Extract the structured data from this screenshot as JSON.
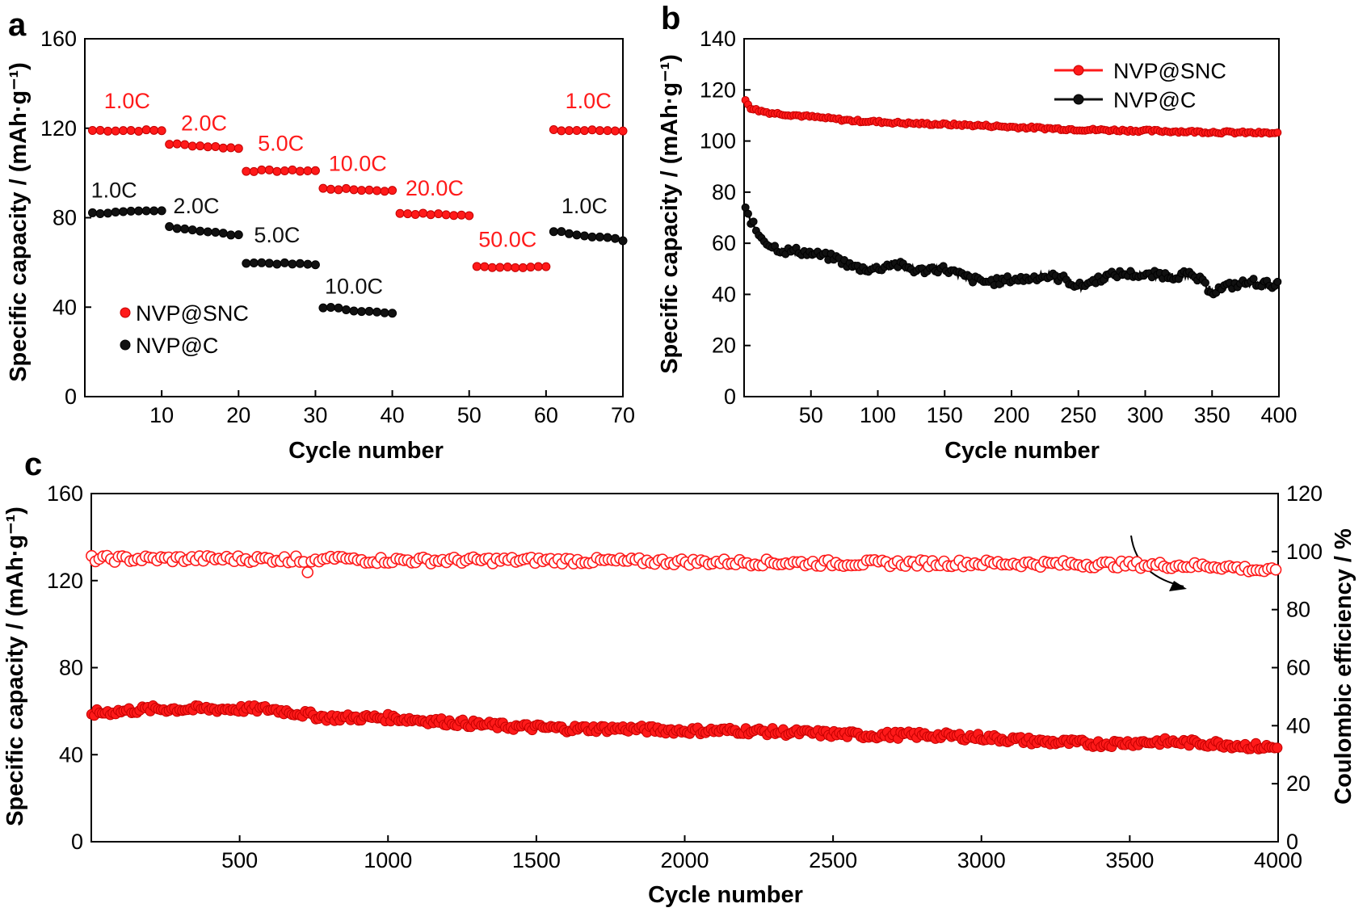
{
  "colors": {
    "snc": "#ff1a1a",
    "c": "#111111",
    "snc_edge": "#c40000",
    "axis": "#000000"
  },
  "chart_data": [
    {
      "panel": "a",
      "type": "scatter",
      "xlabel": "Cycle number",
      "ylabel": "Specific capacity / (mAh·g⁻¹)",
      "xlim": [
        0,
        70
      ],
      "ylim": [
        0,
        160
      ],
      "xticks": [
        "10",
        "20",
        "30",
        "40",
        "50",
        "60",
        "70"
      ],
      "yticks": [
        "0",
        "40",
        "80",
        "120",
        "160"
      ],
      "legend_position": "bottom-left",
      "series": [
        {
          "name": "NVP@SNC",
          "color": "snc",
          "segments": [
            {
              "rate": "1.0C",
              "x_start": 1,
              "x_end": 10,
              "y_start": 119,
              "y_end": 119
            },
            {
              "rate": "2.0C",
              "x_start": 11,
              "x_end": 20,
              "y_start": 113,
              "y_end": 111
            },
            {
              "rate": "5.0C",
              "x_start": 21,
              "x_end": 30,
              "y_start": 101,
              "y_end": 101
            },
            {
              "rate": "10.0C",
              "x_start": 31,
              "x_end": 40,
              "y_start": 93,
              "y_end": 92
            },
            {
              "rate": "20.0C",
              "x_start": 41,
              "x_end": 50,
              "y_start": 82,
              "y_end": 81
            },
            {
              "rate": "50.0C",
              "x_start": 51,
              "x_end": 60,
              "y_start": 58,
              "y_end": 58
            },
            {
              "rate": "1.0C",
              "x_start": 61,
              "x_end": 70,
              "y_start": 119,
              "y_end": 119
            }
          ]
        },
        {
          "name": "NVP@C",
          "color": "c",
          "segments": [
            {
              "rate": "1.0C",
              "x_start": 1,
              "x_end": 10,
              "y_start": 82,
              "y_end": 83
            },
            {
              "rate": "2.0C",
              "x_start": 11,
              "x_end": 20,
              "y_start": 76,
              "y_end": 72
            },
            {
              "rate": "5.0C",
              "x_start": 21,
              "x_end": 30,
              "y_start": 60,
              "y_end": 59
            },
            {
              "rate": "10.0C",
              "x_start": 31,
              "x_end": 40,
              "y_start": 40,
              "y_end": 37
            },
            {
              "rate": "1.0C",
              "x_start": 61,
              "x_end": 70,
              "y_start": 74,
              "y_end": 70
            }
          ]
        }
      ],
      "annotations": [
        {
          "text": "1.0C",
          "series": "NVP@SNC",
          "x": 5.5,
          "y": 129
        },
        {
          "text": "2.0C",
          "series": "NVP@SNC",
          "x": 15.5,
          "y": 119
        },
        {
          "text": "5.0C",
          "series": "NVP@SNC",
          "x": 25.5,
          "y": 110
        },
        {
          "text": "10.0C",
          "series": "NVP@SNC",
          "x": 35.5,
          "y": 101
        },
        {
          "text": "20.0C",
          "series": "NVP@SNC",
          "x": 45.5,
          "y": 90
        },
        {
          "text": "50.0C",
          "series": "NVP@SNC",
          "x": 55,
          "y": 67
        },
        {
          "text": "1.0C",
          "series": "NVP@SNC",
          "x": 65.5,
          "y": 129
        },
        {
          "text": "1.0C",
          "series": "NVP@C",
          "x": 3.8,
          "y": 89
        },
        {
          "text": "2.0C",
          "series": "NVP@C",
          "x": 14.5,
          "y": 82
        },
        {
          "text": "5.0C",
          "series": "NVP@C",
          "x": 25,
          "y": 69
        },
        {
          "text": "10.0C",
          "series": "NVP@C",
          "x": 35,
          "y": 46
        },
        {
          "text": "1.0C",
          "series": "NVP@C",
          "x": 65,
          "y": 82
        }
      ]
    },
    {
      "panel": "b",
      "type": "line",
      "xlabel": "Cycle number",
      "ylabel": "Specific capacity / (mAh·g⁻¹)",
      "xlim": [
        0,
        400
      ],
      "ylim": [
        0,
        140
      ],
      "xticks": [
        "50",
        "100",
        "150",
        "200",
        "250",
        "300",
        "350",
        "400"
      ],
      "yticks": [
        "0",
        "20",
        "40",
        "60",
        "80",
        "100",
        "120",
        "140"
      ],
      "legend_position": "top-right",
      "series": [
        {
          "name": "NVP@SNC",
          "color": "snc",
          "x": [
            1,
            5,
            10,
            20,
            40,
            60,
            80,
            100,
            120,
            150,
            180,
            200,
            250,
            300,
            350,
            400
          ],
          "y": [
            116,
            113,
            112,
            111,
            110,
            109,
            108,
            107.5,
            107,
            106.5,
            106,
            105.5,
            104.5,
            104,
            103.5,
            103
          ]
        },
        {
          "name": "NVP@C",
          "color": "c",
          "x": [
            1,
            5,
            10,
            20,
            30,
            40,
            50,
            60,
            70,
            80,
            90,
            100,
            110,
            120,
            130,
            140,
            150,
            160,
            170,
            180,
            190,
            200,
            210,
            220,
            230,
            240,
            250,
            260,
            270,
            280,
            290,
            300,
            310,
            320,
            330,
            340,
            350,
            360,
            370,
            380,
            390,
            400
          ],
          "y": [
            73,
            69,
            64,
            59,
            57,
            57,
            56,
            55,
            54,
            51,
            50,
            50,
            52,
            51,
            49,
            50,
            50,
            48,
            46,
            45,
            45,
            46,
            46,
            47,
            47,
            46,
            43,
            45,
            47,
            48,
            48,
            47,
            48,
            47,
            48,
            46,
            41,
            43,
            44,
            45,
            44,
            44
          ]
        }
      ]
    },
    {
      "panel": "c",
      "type": "scatter",
      "xlabel": "Cycle number",
      "ylabel": "Specific capacity / (mAh·g⁻¹)",
      "y2label": "Coulombic efficiency / %",
      "xlim": [
        0,
        4000
      ],
      "ylim": [
        0,
        160
      ],
      "y2lim": [
        0,
        120
      ],
      "xticks": [
        "500",
        "1000",
        "1500",
        "2000",
        "2500",
        "3000",
        "3500",
        "4000"
      ],
      "yticks": [
        "0",
        "40",
        "80",
        "120",
        "160"
      ],
      "y2ticks": [
        "0",
        "20",
        "40",
        "60",
        "80",
        "100",
        "120"
      ],
      "series": [
        {
          "name": "Specific capacity",
          "axis": "left",
          "color": "snc",
          "filled": true,
          "x": [
            1,
            200,
            400,
            600,
            800,
            1000,
            1200,
            1400,
            1600,
            1800,
            2000,
            2200,
            2400,
            2600,
            2800,
            3000,
            3200,
            3400,
            3600,
            3800,
            3900,
            4000
          ],
          "y": [
            59,
            61,
            61,
            61,
            57,
            57,
            55,
            53,
            52,
            52,
            51,
            51,
            50,
            49,
            49,
            48,
            46,
            45,
            46,
            45,
            44,
            43
          ]
        },
        {
          "name": "Coulombic efficiency",
          "axis": "right",
          "color": "snc",
          "filled": false,
          "x": [
            1,
            500,
            1000,
            1500,
            2000,
            2500,
            3000,
            3500,
            3800,
            4000
          ],
          "y": [
            97.5,
            97.5,
            97,
            97,
            96.5,
            96,
            96,
            95.5,
            95,
            93
          ]
        }
      ]
    }
  ],
  "panels": {
    "a": {
      "letter": "a",
      "xlabel": "Cycle number",
      "ylabel": "Specific capacity / (mAh·g⁻¹)",
      "legend": [
        "NVP@SNC",
        "NVP@C"
      ]
    },
    "b": {
      "letter": "b",
      "xlabel": "Cycle number",
      "ylabel": "Specific capacity / (mAh·g⁻¹)",
      "legend": [
        "NVP@SNC",
        "NVP@C"
      ]
    },
    "c": {
      "letter": "c",
      "xlabel": "Cycle number",
      "ylabel": "Specific capacity / (mAh·g⁻¹)",
      "y2label": "Coulombic efficiency / %"
    }
  }
}
